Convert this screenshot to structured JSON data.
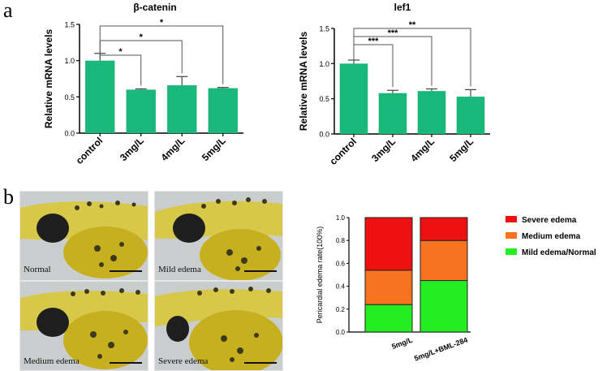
{
  "panel_a_letter": "a",
  "panel_b_letter": "b",
  "photos": [
    {
      "label": "Normal"
    },
    {
      "label": "Mild edema"
    },
    {
      "label": "Medium edema"
    },
    {
      "label": "Severe edema"
    }
  ],
  "chart_data": [
    {
      "type": "bar",
      "title": "β-catenin",
      "ylabel": "Relative mRNA levels",
      "xlabel": "",
      "categories": [
        "control",
        "3mg/L",
        "4mg/L",
        "5mg/L"
      ],
      "values": [
        1.0,
        0.6,
        0.66,
        0.62
      ],
      "errors": [
        0.1,
        0.01,
        0.12,
        0.01
      ],
      "ylim": [
        0,
        1.5
      ],
      "yticks": [
        "0.0",
        "0.5",
        "1.0",
        "1.5"
      ],
      "significance": [
        {
          "from": "control",
          "to": "3mg/L",
          "label": "*"
        },
        {
          "from": "control",
          "to": "4mg/L",
          "label": "*"
        },
        {
          "from": "control",
          "to": "5mg/L",
          "label": "*"
        }
      ],
      "color": "#19b87a"
    },
    {
      "type": "bar",
      "title": "lef1",
      "ylabel": "Relative mRNA levels",
      "xlabel": "",
      "categories": [
        "control",
        "3mg/L",
        "4mg/L",
        "5mg/L"
      ],
      "values": [
        1.0,
        0.58,
        0.61,
        0.53
      ],
      "errors": [
        0.05,
        0.04,
        0.03,
        0.1
      ],
      "ylim": [
        0,
        1.5
      ],
      "yticks": [
        "0.0",
        "0.5",
        "1.0",
        "1.5"
      ],
      "significance": [
        {
          "from": "control",
          "to": "3mg/L",
          "label": "***"
        },
        {
          "from": "control",
          "to": "4mg/L",
          "label": "***"
        },
        {
          "from": "control",
          "to": "5mg/L",
          "label": "**"
        }
      ],
      "color": "#19b87a"
    },
    {
      "type": "bar",
      "stacked": true,
      "title": "",
      "ylabel": "Pericardial edema rate(100%)",
      "xlabel": "",
      "categories": [
        "5mg/L",
        "5mg/L+BML-284"
      ],
      "series": [
        {
          "name": "Mild edema/Normal",
          "values": [
            0.24,
            0.45
          ],
          "color": "#22ee22"
        },
        {
          "name": "Medium edema",
          "values": [
            0.3,
            0.35
          ],
          "color": "#f7731f"
        },
        {
          "name": "Severe edema",
          "values": [
            0.46,
            0.2
          ],
          "color": "#ee1111"
        }
      ],
      "legend_order": [
        "Severe edema",
        "Medium edema",
        "Mild edema/Normal"
      ],
      "ylim": [
        0,
        1.0
      ],
      "yticks": [
        "0.0",
        "0.2",
        "0.4",
        "0.6",
        "0.8",
        "1.0"
      ],
      "legend": "right"
    }
  ]
}
